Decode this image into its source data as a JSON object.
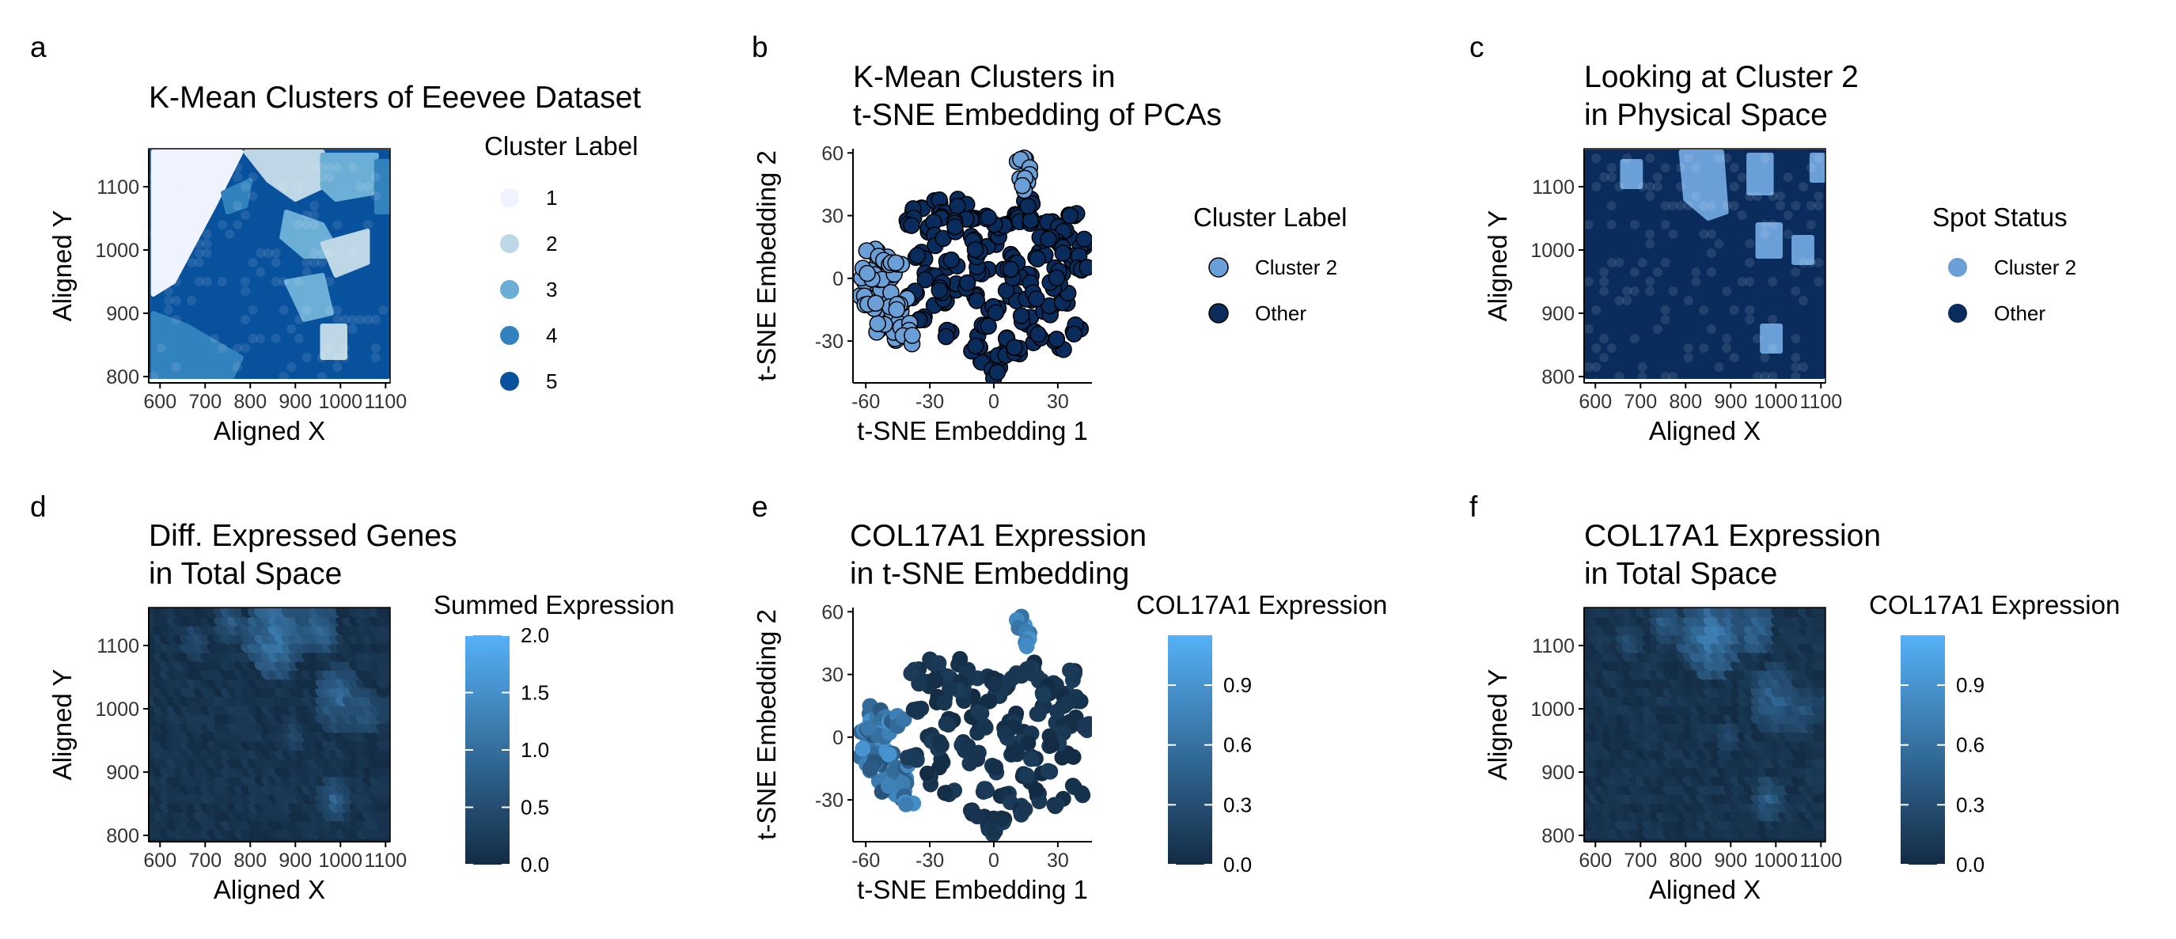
{
  "chart_data": [
    {
      "panel": "a",
      "type": "scatter",
      "title": [
        "K-Mean Clusters of Eeevee Dataset"
      ],
      "xlabel": "Aligned X",
      "ylabel": "Aligned Y",
      "xlim": [
        575,
        1110
      ],
      "ylim": [
        790,
        1160
      ],
      "xticks": [
        "600",
        "700",
        "800",
        "900",
        "1000",
        "1100"
      ],
      "yticks": [
        "800",
        "900",
        "1000",
        "1100"
      ],
      "xtick_values": [
        600,
        700,
        800,
        900,
        1000,
        1100
      ],
      "ytick_values": [
        800,
        900,
        1000,
        1100
      ],
      "legend": {
        "title": "Cluster Label",
        "entries": [
          {
            "label": "1",
            "color": "#eff3ff"
          },
          {
            "label": "2",
            "color": "#bdd7e7"
          },
          {
            "label": "3",
            "color": "#6baed6"
          },
          {
            "label": "4",
            "color": "#3182bd"
          },
          {
            "label": "5",
            "color": "#08519c"
          }
        ]
      },
      "regions": [
        {
          "cluster": "5",
          "points": [
            [
              580,
              800
            ],
            [
              1105,
              800
            ],
            [
              1105,
              1155
            ],
            [
              580,
              1155
            ]
          ]
        },
        {
          "cluster": "1",
          "points": [
            [
              585,
              1155
            ],
            [
              780,
              1155
            ],
            [
              720,
              1070
            ],
            [
              630,
              950
            ],
            [
              585,
              930
            ]
          ]
        },
        {
          "cluster": "4",
          "points": [
            [
              585,
              900
            ],
            [
              660,
              880
            ],
            [
              780,
              830
            ],
            [
              760,
              800
            ],
            [
              585,
              800
            ]
          ]
        },
        {
          "cluster": "4",
          "points": [
            [
              740,
              1090
            ],
            [
              800,
              1110
            ],
            [
              790,
              1070
            ],
            [
              750,
              1060
            ]
          ]
        },
        {
          "cluster": "2",
          "points": [
            [
              790,
              1155
            ],
            [
              960,
              1155
            ],
            [
              960,
              1100
            ],
            [
              900,
              1080
            ],
            [
              840,
              1110
            ]
          ]
        },
        {
          "cluster": "3",
          "points": [
            [
              960,
              1150
            ],
            [
              1080,
              1150
            ],
            [
              1070,
              1090
            ],
            [
              990,
              1080
            ],
            [
              960,
              1100
            ]
          ]
        },
        {
          "cluster": "3",
          "points": [
            [
              880,
              1060
            ],
            [
              960,
              1040
            ],
            [
              1000,
              990
            ],
            [
              920,
              990
            ],
            [
              870,
              1020
            ]
          ]
        },
        {
          "cluster": "2",
          "points": [
            [
              960,
              1010
            ],
            [
              1060,
              1030
            ],
            [
              1060,
              980
            ],
            [
              990,
              960
            ]
          ]
        },
        {
          "cluster": "3",
          "points": [
            [
              880,
              950
            ],
            [
              960,
              960
            ],
            [
              980,
              900
            ],
            [
              920,
              890
            ]
          ]
        },
        {
          "cluster": "2",
          "points": [
            [
              960,
              880
            ],
            [
              1010,
              880
            ],
            [
              1010,
              830
            ],
            [
              960,
              830
            ]
          ]
        },
        {
          "cluster": "4",
          "points": [
            [
              1080,
              1140
            ],
            [
              1105,
              1140
            ],
            [
              1105,
              1060
            ],
            [
              1080,
              1060
            ]
          ]
        }
      ]
    },
    {
      "panel": "b",
      "type": "scatter",
      "title": [
        "K-Mean Clusters in",
        "t-SNE Embedding of PCAs"
      ],
      "xlabel": "t-SNE Embedding 1",
      "ylabel": "t-SNE Embedding 2",
      "xlim": [
        -66,
        46
      ],
      "ylim": [
        -50,
        62
      ],
      "xticks": [
        "-60",
        "-30",
        "0",
        "30"
      ],
      "yticks": [
        "60",
        "30",
        "0",
        "-30"
      ],
      "xtick_values": [
        -60,
        -30,
        0,
        30
      ],
      "ytick_values": [
        60,
        30,
        0,
        -30
      ],
      "legend": {
        "title": "Cluster Label",
        "entries": [
          {
            "label": "Cluster 2",
            "color": "#6a9fd8"
          },
          {
            "label": "Other",
            "color": "#0a2c5c"
          }
        ]
      },
      "series": [
        {
          "name": "Cluster 2",
          "points": [
            [
              -57,
              12
            ],
            [
              -55,
              6
            ],
            [
              -52,
              10
            ],
            [
              -50,
              2
            ],
            [
              -58,
              -4
            ],
            [
              -56,
              -10
            ],
            [
              -53,
              -15
            ],
            [
              -49,
              -20
            ],
            [
              -47,
              -25
            ],
            [
              -44,
              -28
            ],
            [
              -60,
              -8
            ],
            [
              -50,
              -8
            ],
            [
              -46,
              -15
            ],
            [
              -54,
              0
            ],
            [
              -42,
              -22
            ],
            [
              -48,
              5
            ],
            [
              -52,
              -24
            ],
            [
              -45,
              8
            ],
            [
              -60,
              2
            ],
            [
              -40,
              -30
            ],
            [
              -58,
              -14
            ],
            [
              -43,
              -12
            ],
            [
              12,
              55
            ],
            [
              14,
              50
            ],
            [
              16,
              45
            ]
          ]
        },
        {
          "name": "Other",
          "points": [
            [
              -35,
              33
            ],
            [
              -28,
              35
            ],
            [
              -22,
              30
            ],
            [
              -30,
              25
            ],
            [
              -38,
              28
            ],
            [
              -15,
              35
            ],
            [
              -10,
              30
            ],
            [
              -25,
              18
            ],
            [
              -35,
              12
            ],
            [
              -20,
              8
            ],
            [
              -30,
              0
            ],
            [
              -38,
              -8
            ],
            [
              -25,
              -12
            ],
            [
              -32,
              -20
            ],
            [
              -20,
              -25
            ],
            [
              -10,
              -10
            ],
            [
              -5,
              5
            ],
            [
              0,
              18
            ],
            [
              5,
              25
            ],
            [
              10,
              30
            ],
            [
              20,
              28
            ],
            [
              28,
              25
            ],
            [
              35,
              22
            ],
            [
              40,
              18
            ],
            [
              38,
              8
            ],
            [
              30,
              5
            ],
            [
              22,
              12
            ],
            [
              15,
              0
            ],
            [
              8,
              -8
            ],
            [
              0,
              -15
            ],
            [
              -5,
              -25
            ],
            [
              5,
              -30
            ],
            [
              15,
              -20
            ],
            [
              25,
              -15
            ],
            [
              35,
              -10
            ],
            [
              40,
              -25
            ],
            [
              30,
              -32
            ],
            [
              20,
              -28
            ],
            [
              -3,
              -40
            ],
            [
              0,
              -45
            ],
            [
              3,
              -38
            ],
            [
              -8,
              -35
            ],
            [
              10,
              10
            ],
            [
              18,
              -8
            ],
            [
              -15,
              -5
            ],
            [
              -12,
              20
            ],
            [
              28,
              -2
            ],
            [
              36,
              30
            ],
            [
              42,
              5
            ],
            [
              -2,
              28
            ],
            [
              12,
              -35
            ],
            [
              32,
              15
            ],
            [
              -18,
              25
            ],
            [
              24,
              20
            ],
            [
              6,
              2
            ],
            [
              -8,
              12
            ],
            [
              17,
              35
            ],
            [
              -26,
              -5
            ]
          ]
        }
      ]
    },
    {
      "panel": "c",
      "type": "scatter",
      "title": [
        "Looking at Cluster 2",
        "in Physical Space"
      ],
      "xlabel": "Aligned X",
      "ylabel": "Aligned Y",
      "xlim": [
        575,
        1110
      ],
      "ylim": [
        790,
        1160
      ],
      "xticks": [
        "600",
        "700",
        "800",
        "900",
        "1000",
        "1100"
      ],
      "yticks": [
        "800",
        "900",
        "1000",
        "1100"
      ],
      "xtick_values": [
        600,
        700,
        800,
        900,
        1000,
        1100
      ],
      "ytick_values": [
        800,
        900,
        1000,
        1100
      ],
      "legend": {
        "title": "Spot Status",
        "entries": [
          {
            "label": "Cluster 2",
            "color": "#6a9fd8"
          },
          {
            "label": "Other",
            "color": "#0a2c5c"
          }
        ]
      },
      "regions": [
        {
          "cluster": "Other",
          "points": [
            [
              580,
              800
            ],
            [
              1105,
              800
            ],
            [
              1105,
              1155
            ],
            [
              580,
              1155
            ]
          ]
        },
        {
          "cluster": "Cluster 2",
          "points": [
            [
              660,
              1140
            ],
            [
              700,
              1140
            ],
            [
              700,
              1100
            ],
            [
              660,
              1100
            ]
          ]
        },
        {
          "cluster": "Cluster 2",
          "points": [
            [
              790,
              1155
            ],
            [
              880,
              1155
            ],
            [
              890,
              1060
            ],
            [
              850,
              1050
            ],
            [
              800,
              1080
            ]
          ]
        },
        {
          "cluster": "Cluster 2",
          "points": [
            [
              940,
              1150
            ],
            [
              990,
              1150
            ],
            [
              990,
              1090
            ],
            [
              940,
              1090
            ]
          ]
        },
        {
          "cluster": "Cluster 2",
          "points": [
            [
              1080,
              1150
            ],
            [
              1105,
              1150
            ],
            [
              1105,
              1110
            ],
            [
              1080,
              1110
            ]
          ]
        },
        {
          "cluster": "Cluster 2",
          "points": [
            [
              960,
              1040
            ],
            [
              1010,
              1040
            ],
            [
              1010,
              990
            ],
            [
              960,
              990
            ]
          ]
        },
        {
          "cluster": "Cluster 2",
          "points": [
            [
              1040,
              1020
            ],
            [
              1080,
              1020
            ],
            [
              1080,
              980
            ],
            [
              1040,
              980
            ]
          ]
        },
        {
          "cluster": "Cluster 2",
          "points": [
            [
              970,
              880
            ],
            [
              1010,
              880
            ],
            [
              1010,
              840
            ],
            [
              970,
              840
            ]
          ]
        }
      ]
    },
    {
      "panel": "d",
      "type": "scatter",
      "title": [
        "Diff. Expressed Genes",
        "in Total Space"
      ],
      "xlabel": "Aligned X",
      "ylabel": "Aligned Y",
      "xlim": [
        575,
        1110
      ],
      "ylim": [
        790,
        1160
      ],
      "xticks": [
        "600",
        "700",
        "800",
        "900",
        "1000",
        "1100"
      ],
      "yticks": [
        "800",
        "900",
        "1000",
        "1100"
      ],
      "xtick_values": [
        600,
        700,
        800,
        900,
        1000,
        1100
      ],
      "ytick_values": [
        800,
        900,
        1000,
        1100
      ],
      "colorbar": {
        "title": "Summed Expression",
        "min": 0,
        "max": 2.0,
        "ticks": [
          0,
          0.5,
          1.0,
          1.5,
          2.0
        ],
        "ticklabels": [
          "0.0",
          "0.5",
          "1.0",
          "1.5",
          "2.0"
        ],
        "low_color": "#132b43",
        "high_color": "#56b1f7"
      }
    },
    {
      "panel": "e",
      "type": "scatter",
      "title": [
        "COL17A1 Expression",
        " in t-SNE Embedding"
      ],
      "xlabel": "t-SNE Embedding 1",
      "ylabel": "t-SNE Embedding 2",
      "xlim": [
        -66,
        46
      ],
      "ylim": [
        -50,
        62
      ],
      "xticks": [
        "-60",
        "-30",
        "0",
        "30"
      ],
      "yticks": [
        "60",
        "30",
        "0",
        "-30"
      ],
      "xtick_values": [
        -60,
        -30,
        0,
        30
      ],
      "ytick_values": [
        60,
        30,
        0,
        -30
      ],
      "colorbar": {
        "title": "COL17A1 Expression",
        "min": 0,
        "max": 1.15,
        "ticks": [
          0,
          0.3,
          0.6,
          0.9
        ],
        "ticklabels": [
          "0.0",
          "0.3",
          "0.6",
          "0.9"
        ],
        "low_color": "#132b43",
        "high_color": "#56b1f7"
      }
    },
    {
      "panel": "f",
      "type": "scatter",
      "title": [
        "COL17A1 Expression",
        "in Total Space"
      ],
      "xlabel": "Aligned X",
      "ylabel": "Aligned Y",
      "xlim": [
        575,
        1110
      ],
      "ylim": [
        790,
        1160
      ],
      "xticks": [
        "600",
        "700",
        "800",
        "900",
        "1000",
        "1100"
      ],
      "yticks": [
        "800",
        "900",
        "1000",
        "1100"
      ],
      "xtick_values": [
        600,
        700,
        800,
        900,
        1000,
        1100
      ],
      "ytick_values": [
        800,
        900,
        1000,
        1100
      ],
      "colorbar": {
        "title": "COL17A1 Expression",
        "min": 0,
        "max": 1.15,
        "ticks": [
          0,
          0.3,
          0.6,
          0.9
        ],
        "ticklabels": [
          "0.0",
          "0.3",
          "0.6",
          "0.9"
        ],
        "low_color": "#132b43",
        "high_color": "#56b1f7"
      }
    }
  ]
}
